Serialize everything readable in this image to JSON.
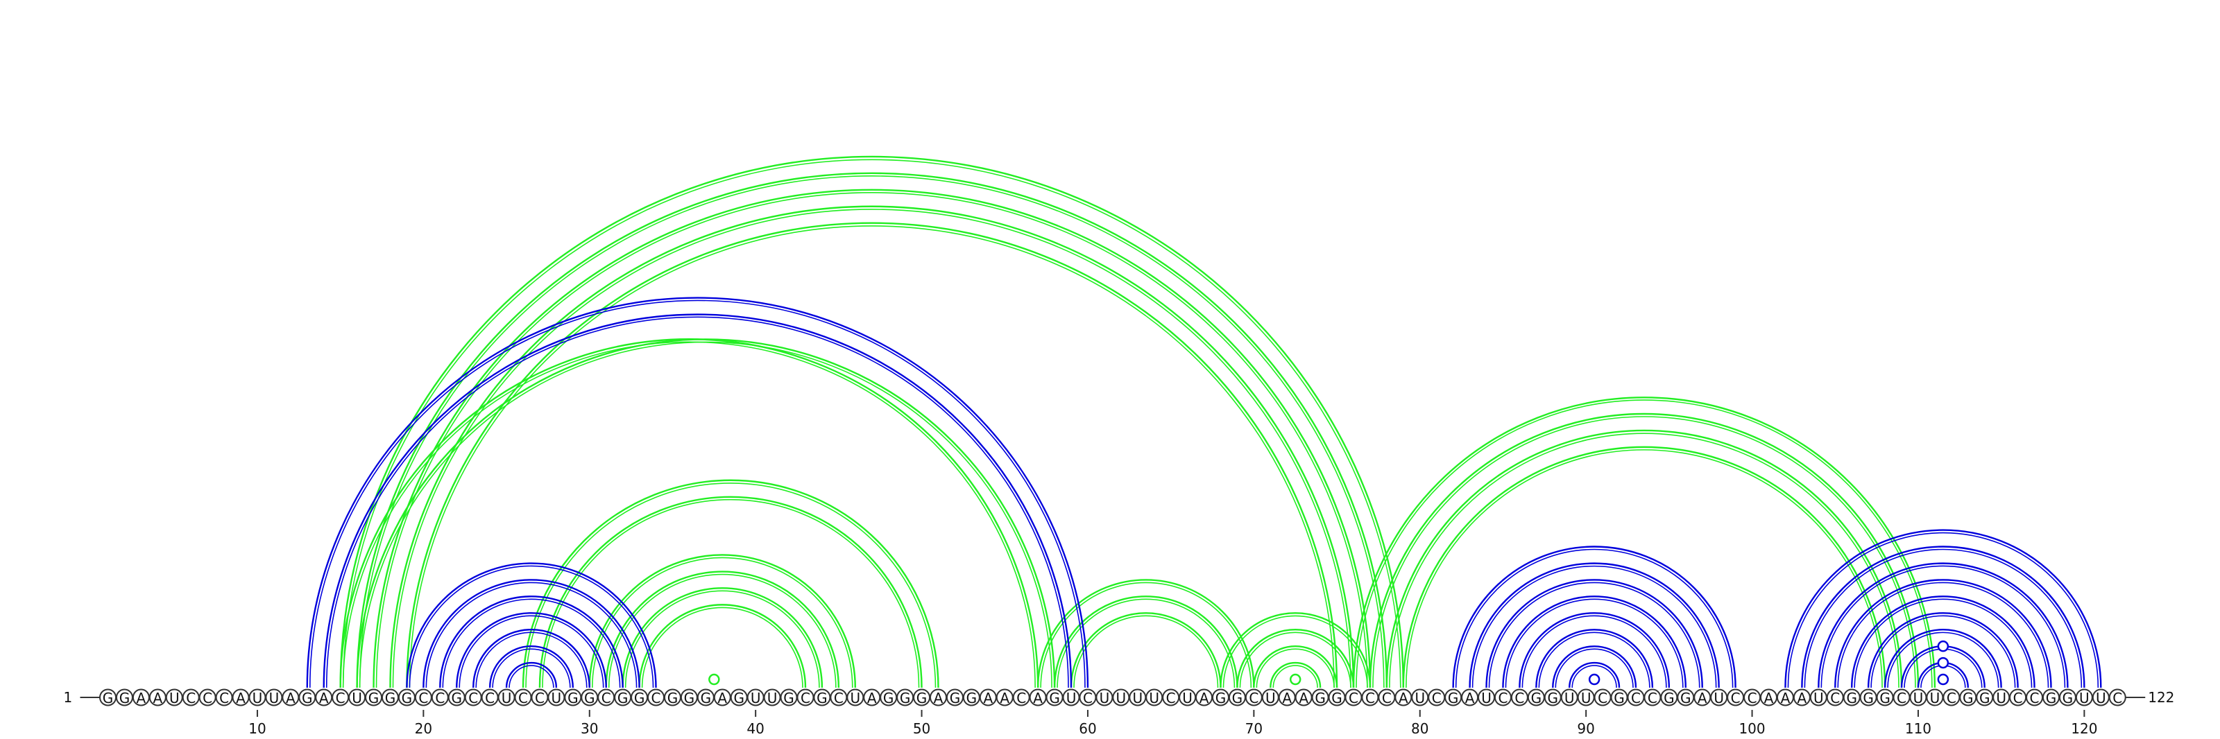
{
  "sequence": "GGAAUCCCAUUAGACUGGGCCGCCUCCUGGCGGCGGGAGUUGCGCUAGGGAGGAACAGUCUUUUCUAGGCUAAGGCCCAUCGAUCCGGUUCGCCGGAUCCAAAUCGGGCUUCGGUCCGGUUC",
  "start_label": "1",
  "end_label": "122",
  "ticks": [
    "10",
    "20",
    "30",
    "40",
    "50",
    "60",
    "70",
    "80",
    "90",
    "100",
    "110",
    "120"
  ],
  "colors": {
    "blue_structure": "#0000dd",
    "green_structure": "#22ee22",
    "nucleotide_outline": "#333333",
    "background": "#ffffff"
  },
  "arcs_blue": [
    [
      13,
      60
    ],
    [
      14,
      59
    ],
    [
      19,
      34
    ],
    [
      20,
      33
    ],
    [
      21,
      32
    ],
    [
      22,
      31
    ],
    [
      23,
      30
    ],
    [
      24,
      29
    ],
    [
      25,
      28
    ],
    [
      82,
      99
    ],
    [
      83,
      98
    ],
    [
      84,
      97
    ],
    [
      85,
      96
    ],
    [
      86,
      95
    ],
    [
      87,
      94
    ],
    [
      88,
      93
    ],
    [
      89,
      92
    ],
    [
      102,
      121
    ],
    [
      103,
      120
    ],
    [
      104,
      119
    ],
    [
      105,
      118
    ],
    [
      106,
      117
    ],
    [
      107,
      116
    ],
    [
      108,
      115
    ],
    [
      109,
      114
    ],
    [
      110,
      113
    ]
  ],
  "arcs_green": [
    [
      15,
      79
    ],
    [
      16,
      78
    ],
    [
      17,
      77
    ],
    [
      18,
      76
    ],
    [
      19,
      75
    ],
    [
      15,
      57
    ],
    [
      16,
      58
    ],
    [
      26,
      51
    ],
    [
      27,
      50
    ],
    [
      30,
      46
    ],
    [
      31,
      45
    ],
    [
      32,
      44
    ],
    [
      33,
      43
    ],
    [
      57,
      70
    ],
    [
      58,
      69
    ],
    [
      59,
      68
    ],
    [
      68,
      77
    ],
    [
      69,
      76
    ],
    [
      70,
      75
    ],
    [
      71,
      74
    ],
    [
      76,
      111
    ],
    [
      77,
      110
    ],
    [
      78,
      109
    ],
    [
      79,
      108
    ]
  ],
  "loop_markers_blue": [
    [
      90,
      91
    ],
    [
      111,
      112
    ],
    [
      110,
      113
    ],
    [
      109,
      114
    ]
  ],
  "loop_markers_green": [
    [
      37,
      38
    ],
    [
      72,
      73
    ]
  ]
}
